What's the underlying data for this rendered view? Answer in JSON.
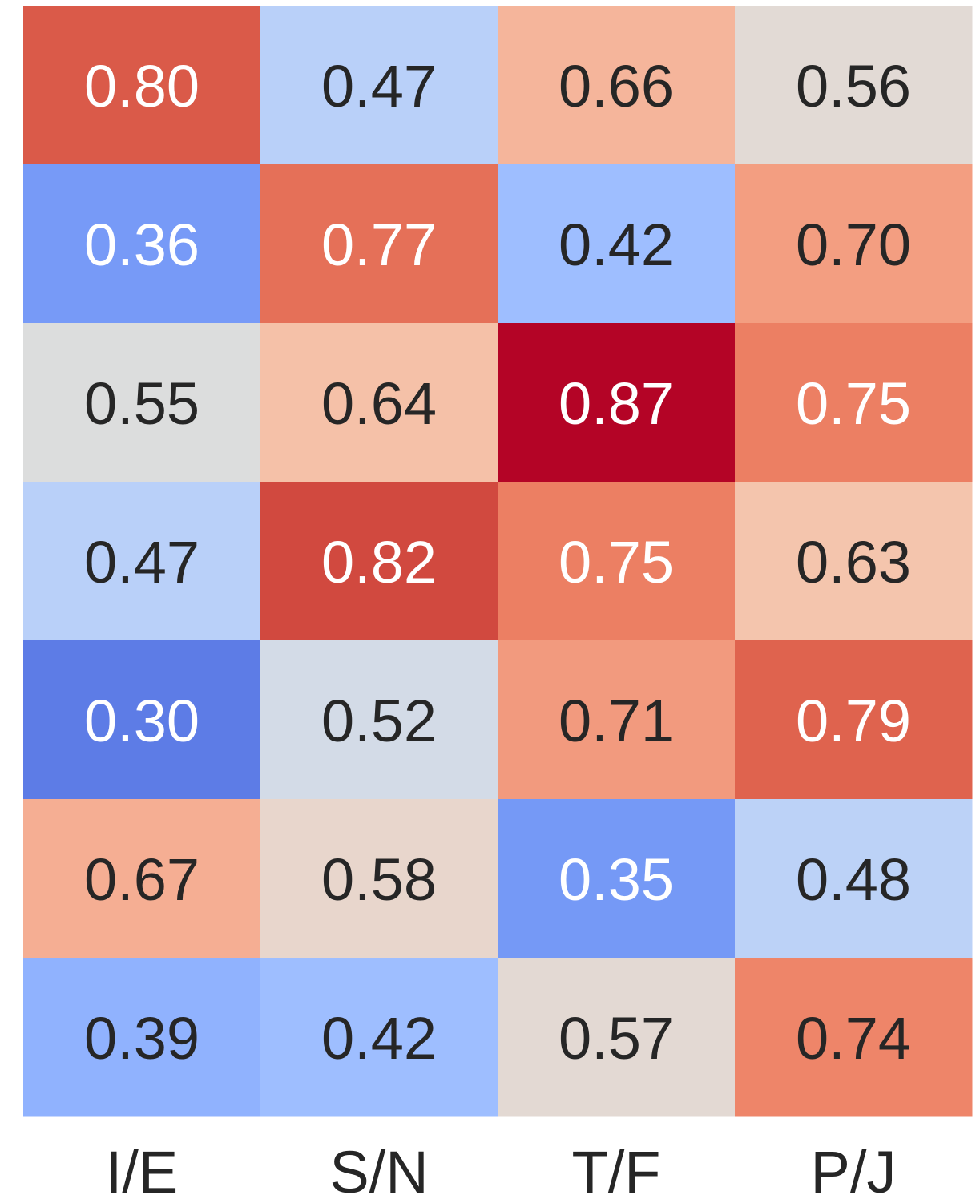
{
  "chart_data": {
    "type": "heatmap",
    "title": "",
    "xlabel": "",
    "ylabel": "",
    "x_categories": [
      "I/E",
      "S/N",
      "T/F",
      "P/J"
    ],
    "y_categories": [],
    "values": [
      [
        0.8,
        0.47,
        0.66,
        0.56
      ],
      [
        0.36,
        0.77,
        0.42,
        0.7
      ],
      [
        0.55,
        0.64,
        0.87,
        0.75
      ],
      [
        0.47,
        0.82,
        0.75,
        0.63
      ],
      [
        0.3,
        0.52,
        0.71,
        0.79
      ],
      [
        0.67,
        0.58,
        0.35,
        0.48
      ],
      [
        0.39,
        0.42,
        0.57,
        0.74
      ]
    ],
    "value_labels": [
      [
        "0.80",
        "0.47",
        "0.66",
        "0.56"
      ],
      [
        "0.36",
        "0.77",
        "0.42",
        "0.70"
      ],
      [
        "0.55",
        "0.64",
        "0.87",
        "0.75"
      ],
      [
        "0.47",
        "0.82",
        "0.75",
        "0.63"
      ],
      [
        "0.30",
        "0.52",
        "0.71",
        "0.79"
      ],
      [
        "0.67",
        "0.58",
        "0.35",
        "0.48"
      ],
      [
        "0.39",
        "0.42",
        "0.57",
        "0.74"
      ]
    ],
    "colormap": "coolwarm",
    "colorbar": false,
    "grid": false,
    "legend": "none",
    "cell_colors": [
      [
        "#da5a49",
        "#b9d0f9",
        "#f5b59b",
        "#e2dad5"
      ],
      [
        "#779af7",
        "#e57058",
        "#9ebeff",
        "#f39e81"
      ],
      [
        "#dcdddd",
        "#f5c1a8",
        "#b40426",
        "#ec7f63"
      ],
      [
        "#b9d0f9",
        "#d1493f",
        "#ec7f63",
        "#f4c5ad"
      ],
      [
        "#5d7ce6",
        "#d3dbe7",
        "#f29a7e",
        "#df634e"
      ],
      [
        "#f5ae93",
        "#e8d6cc",
        "#7599f6",
        "#bcd2f7"
      ],
      [
        "#90b2fe",
        "#9ebeff",
        "#e3d9d3",
        "#ee8569"
      ]
    ],
    "text_colors": {
      "light": "#ffffff",
      "dark": "#262626"
    }
  }
}
